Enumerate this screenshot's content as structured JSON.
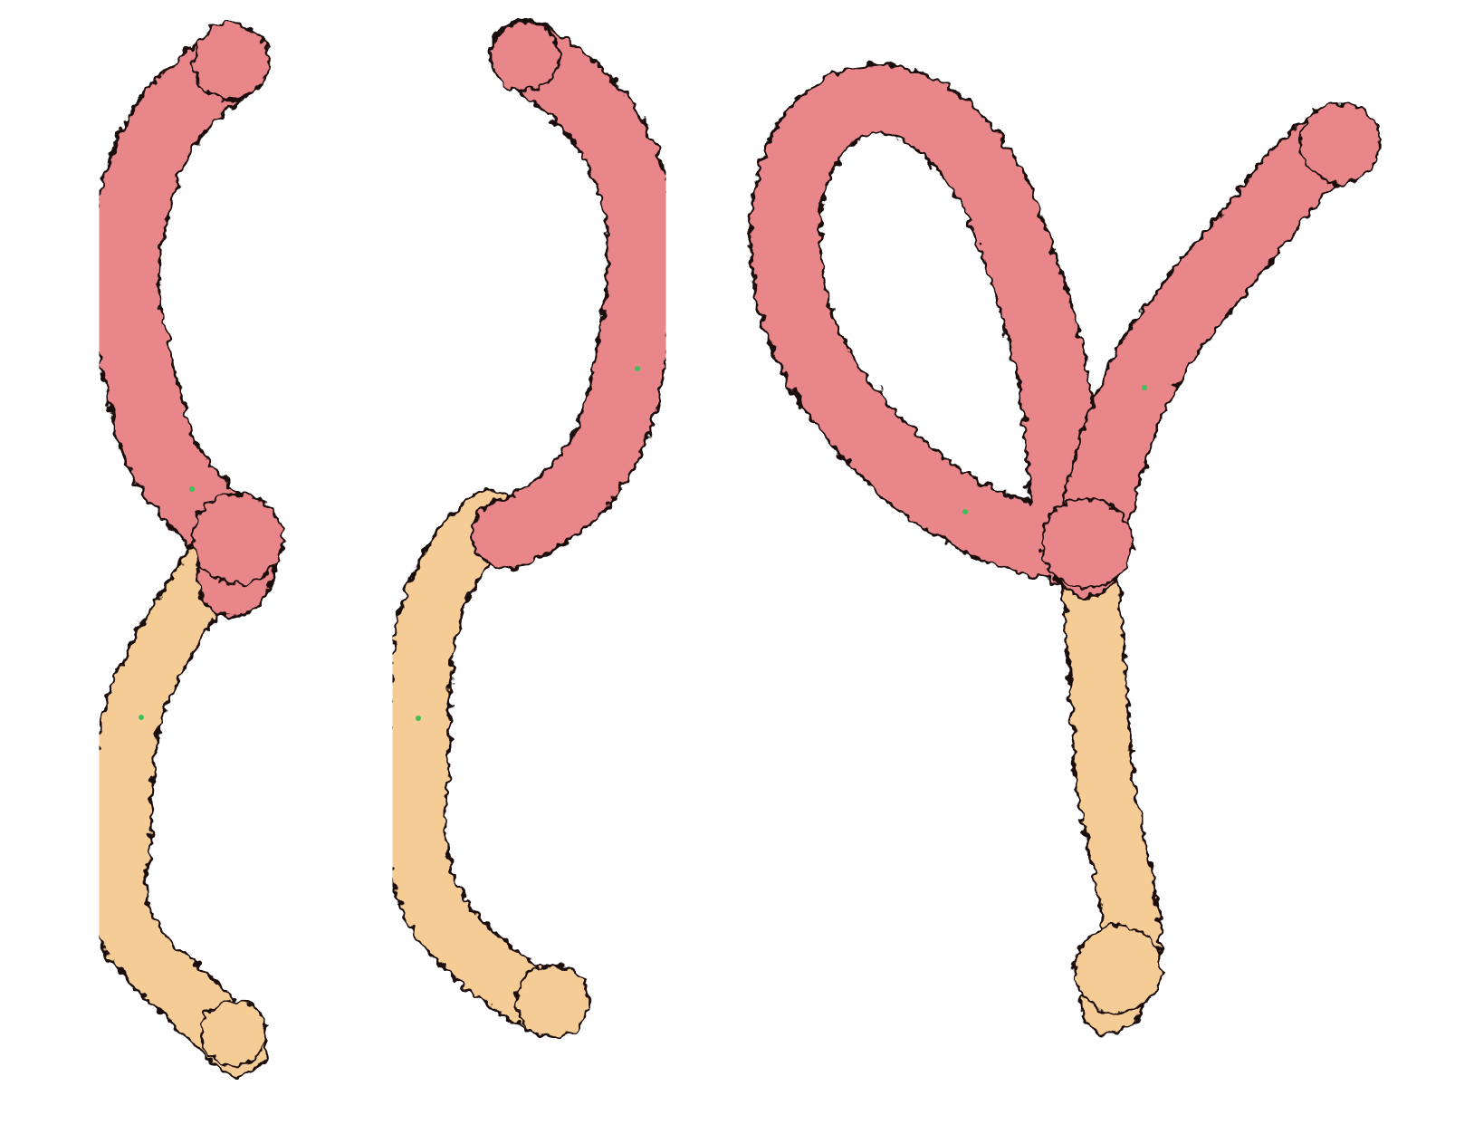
{
  "image": {
    "background_color": "#ffffff",
    "outline_color": "#1a0f0f",
    "colors": {
      "pink_domain": "#e8868a",
      "tan_domain": "#f5cc96",
      "highlight_dot": "#3fbf5a"
    },
    "molecules": [
      {
        "name": "left-molecule",
        "segments": [
          "pink",
          "tan"
        ]
      },
      {
        "name": "middle-molecule",
        "segments": [
          "pink",
          "tan"
        ]
      },
      {
        "name": "right-molecule",
        "segments": [
          "pink-loop",
          "pink-arm",
          "tan"
        ]
      }
    ]
  }
}
